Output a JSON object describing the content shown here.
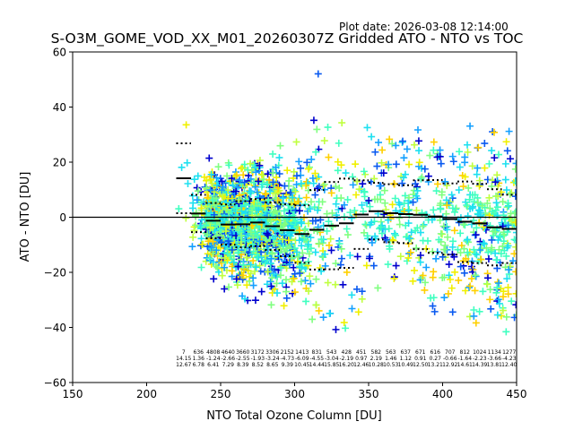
{
  "plot_date": "Plot date: 2026-03-08 12:14:00",
  "chart_data": {
    "type": "scatter",
    "title": "S-O3M_GOME_VOD_XX_M01_20260307Z Gridded ATO - NTO vs TOC",
    "xlabel": "NTO Total Ozone Column [DU]",
    "ylabel": "ATO - NTO [DU]",
    "xlim": [
      150,
      450
    ],
    "ylim": [
      -60,
      60
    ],
    "xticks": [
      "150",
      "200",
      "250",
      "300",
      "350",
      "400",
      "450"
    ],
    "yticks": [
      "60",
      "40",
      "20",
      "0",
      "-20",
      "-40",
      "-60"
    ],
    "grid": false,
    "colors": {
      "scatter_palette": [
        "#0000cd",
        "#0a5af0",
        "#14a0ff",
        "#1ee0f0",
        "#40ffc0",
        "#80ff80",
        "#c0ff40",
        "#f0f000",
        "#ffd000"
      ],
      "mean": "#000000",
      "zero_line": "#000000"
    },
    "bins": {
      "x_start": [
        220,
        230,
        240,
        250,
        260,
        270,
        280,
        290,
        300,
        310,
        320,
        330,
        340,
        350,
        360,
        370,
        380,
        390,
        400,
        410,
        420,
        430,
        440
      ],
      "bin_width": 10,
      "counts": [
        "7",
        "636",
        "4808",
        "4640",
        "3660",
        "3172",
        "3306",
        "2152",
        "1413",
        "831",
        "543",
        "428",
        "451",
        "582",
        "563",
        "637",
        "671",
        "616",
        "707",
        "812",
        "1024",
        "1134",
        "1277"
      ],
      "means": [
        "14.15",
        "1.36",
        "-1.24",
        "-2.66",
        "-2.55",
        "-1.93",
        "-3.24",
        "-4.73",
        "-6.09",
        "-4.55",
        "-3.04",
        "-2.19",
        "0.97",
        "2.19",
        "1.46",
        "1.12",
        "0.91",
        "0.27",
        "-0.66",
        "-1.64",
        "-2.23",
        "-3.66",
        "-4.23"
      ],
      "stds": [
        "12.67",
        "6.78",
        "6.41",
        "7.29",
        "8.39",
        "8.52",
        "8.65",
        "9.39",
        "10.45",
        "14.44",
        "15.85",
        "16.20",
        "12.46",
        "10.28",
        "10.53",
        "10.49",
        "12.50",
        "13.21",
        "12.92",
        "14.61",
        "14.39",
        "13.81",
        "12.40"
      ]
    }
  }
}
